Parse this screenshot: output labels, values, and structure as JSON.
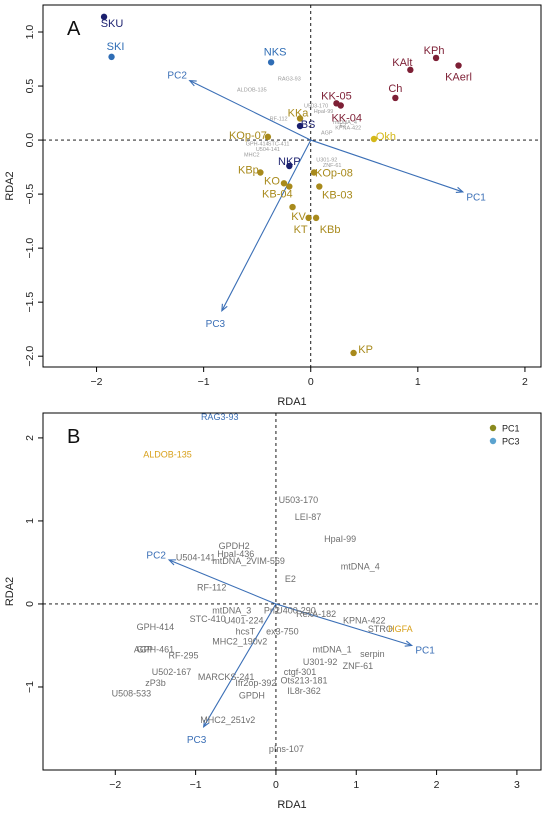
{
  "colors": {
    "frame": "#000000",
    "arrow": "#3b6fb6",
    "arrow_label": "#3b6fb6",
    "variable_label": "#6e6e6e",
    "faint_label": "#9a9a9a",
    "navy": "#1a1f6e",
    "blue": "#2f6db5",
    "maroon": "#7d1f35",
    "olive": "#a88a1c",
    "gold": "#d4b819",
    "pc1_legend": "#8a8a1f",
    "pc3_legend": "#5ba3cf",
    "orange_label": "#d8a01a"
  },
  "chart_data": [
    {
      "panel_label": "A",
      "type": "scatter",
      "xlabel": "RDA1",
      "ylabel": "RDA2",
      "xlim": [
        -2.5,
        2.15
      ],
      "ylim": [
        -2.1,
        1.25
      ],
      "xticks": [
        -2,
        -1,
        0,
        1,
        2
      ],
      "yticks": [
        -2.0,
        -1.5,
        -1.0,
        -0.5,
        0.0,
        0.5,
        1.0
      ],
      "xtick_labels": [
        "−2",
        "−1",
        "0",
        "1",
        "2"
      ],
      "ytick_labels": [
        "−2.0",
        "−1.5",
        "−1.0",
        "−0.5",
        "0.0",
        "0.5",
        "1.0"
      ],
      "points": [
        {
          "label": "SKU",
          "x": -1.93,
          "y": 1.14,
          "color": "navy"
        },
        {
          "label": "SKI",
          "x": -1.86,
          "y": 0.77,
          "color": "blue"
        },
        {
          "label": "NKS",
          "x": -0.37,
          "y": 0.72,
          "color": "blue"
        },
        {
          "label": "KPh",
          "x": 1.17,
          "y": 0.76,
          "color": "maroon"
        },
        {
          "label": "KAerl",
          "x": 1.38,
          "y": 0.69,
          "color": "maroon"
        },
        {
          "label": "KAlt",
          "x": 0.93,
          "y": 0.65,
          "color": "maroon"
        },
        {
          "label": "Ch",
          "x": 0.79,
          "y": 0.39,
          "color": "maroon"
        },
        {
          "label": "KK-05",
          "x": 0.24,
          "y": 0.34,
          "color": "maroon"
        },
        {
          "label": "KK-04",
          "x": 0.28,
          "y": 0.32,
          "color": "maroon"
        },
        {
          "label": "KKa",
          "x": -0.1,
          "y": 0.2,
          "color": "olive"
        },
        {
          "label": "BS",
          "x": -0.1,
          "y": 0.13,
          "color": "navy"
        },
        {
          "label": "KOp-07",
          "x": -0.4,
          "y": 0.03,
          "color": "olive"
        },
        {
          "label": "Okh",
          "x": 0.59,
          "y": 0.01,
          "color": "gold"
        },
        {
          "label": "NKP",
          "x": -0.2,
          "y": -0.24,
          "color": "navy"
        },
        {
          "label": "KBp",
          "x": -0.47,
          "y": -0.3,
          "color": "olive"
        },
        {
          "label": "KOp-08",
          "x": 0.03,
          "y": -0.3,
          "color": "olive"
        },
        {
          "label": "KO",
          "x": -0.25,
          "y": -0.4,
          "color": "olive"
        },
        {
          "label": "KB-04",
          "x": -0.2,
          "y": -0.43,
          "color": "olive"
        },
        {
          "label": "KB-03",
          "x": 0.08,
          "y": -0.43,
          "color": "olive"
        },
        {
          "label": "KV",
          "x": -0.17,
          "y": -0.62,
          "color": "olive"
        },
        {
          "label": "KT",
          "x": -0.02,
          "y": -0.72,
          "color": "olive"
        },
        {
          "label": "KBb",
          "x": 0.05,
          "y": -0.72,
          "color": "olive"
        },
        {
          "label": "KP",
          "x": 0.4,
          "y": -1.97,
          "color": "olive"
        }
      ],
      "arrows": [
        {
          "label": "PC2",
          "x": -1.13,
          "y": 0.55
        },
        {
          "label": "PC1",
          "x": 1.42,
          "y": -0.48
        },
        {
          "label": "PC3",
          "x": -0.83,
          "y": -1.58
        }
      ],
      "small_labels": [
        "RAG3-93",
        "ALDOB-135",
        "RF-112",
        "U504-141",
        "STC-411",
        "GPH-414",
        "AGP",
        "E2",
        "mtDNA_4",
        "HpaI-99",
        "U503-170",
        "U301-92",
        "MHC2",
        "ZNF-61",
        "KPNA-422"
      ]
    },
    {
      "panel_label": "B",
      "type": "scatter",
      "xlabel": "RDA1",
      "ylabel": "RDA2",
      "xlim": [
        -2.9,
        3.3
      ],
      "ylim": [
        -2.0,
        2.3
      ],
      "xticks": [
        -2,
        -1,
        0,
        1,
        2,
        3
      ],
      "yticks": [
        -1,
        0,
        1,
        2
      ],
      "xtick_labels": [
        "−2",
        "−1",
        "0",
        "1",
        "2",
        "3"
      ],
      "ytick_labels": [
        "−1",
        "0",
        "1",
        "2"
      ],
      "legend": {
        "position": "top-right",
        "entries": [
          {
            "label": "PC1",
            "color": "pc1_legend"
          },
          {
            "label": "PC3",
            "color": "pc3_legend"
          }
        ]
      },
      "arrows": [
        {
          "label": "PC2",
          "x": -1.33,
          "y": 0.53
        },
        {
          "label": "PC1",
          "x": 1.69,
          "y": -0.5
        },
        {
          "label": "PC3",
          "x": -0.9,
          "y": -1.48
        }
      ],
      "variables": [
        {
          "label": "RAG3-93",
          "x": -0.7,
          "y": 2.25,
          "color": "arrow_label"
        },
        {
          "label": "ALDOB-135",
          "x": -1.35,
          "y": 1.8,
          "color": "orange_label"
        },
        {
          "label": "U503-170",
          "x": 0.28,
          "y": 1.25,
          "color": "variable_label"
        },
        {
          "label": "LEI-87",
          "x": 0.4,
          "y": 1.05,
          "color": "variable_label"
        },
        {
          "label": "HpaI-99",
          "x": 0.8,
          "y": 0.78,
          "color": "variable_label"
        },
        {
          "label": "mtDNA_4",
          "x": 1.05,
          "y": 0.45,
          "color": "variable_label"
        },
        {
          "label": "GPDH2",
          "x": -0.52,
          "y": 0.7,
          "color": "variable_label"
        },
        {
          "label": "HpaI-436",
          "x": -0.5,
          "y": 0.6,
          "color": "variable_label"
        },
        {
          "label": "U504-141",
          "x": -1.0,
          "y": 0.56,
          "color": "variable_label"
        },
        {
          "label": "mtDNA_2",
          "x": -0.55,
          "y": 0.52,
          "color": "variable_label"
        },
        {
          "label": "VIM-569",
          "x": -0.1,
          "y": 0.52,
          "color": "variable_label"
        },
        {
          "label": "E2",
          "x": 0.18,
          "y": 0.3,
          "color": "variable_label"
        },
        {
          "label": "RF-112",
          "x": -0.8,
          "y": 0.2,
          "color": "variable_label"
        },
        {
          "label": "mtDNA_3",
          "x": -0.55,
          "y": -0.08,
          "color": "variable_label"
        },
        {
          "label": "Pri2",
          "x": -0.05,
          "y": -0.08,
          "color": "variable_label"
        },
        {
          "label": "U400-290",
          "x": 0.25,
          "y": -0.08,
          "color": "variable_label"
        },
        {
          "label": "RexA-182",
          "x": 0.5,
          "y": -0.12,
          "color": "variable_label"
        },
        {
          "label": "KPNA-422",
          "x": 1.1,
          "y": -0.2,
          "color": "variable_label"
        },
        {
          "label": "STC-410",
          "x": -0.85,
          "y": -0.18,
          "color": "variable_label"
        },
        {
          "label": "U401-224",
          "x": -0.4,
          "y": -0.2,
          "color": "variable_label"
        },
        {
          "label": "hcsT",
          "x": -0.38,
          "y": -0.33,
          "color": "variable_label"
        },
        {
          "label": "ex3-750",
          "x": 0.08,
          "y": -0.33,
          "color": "variable_label"
        },
        {
          "label": "STRO",
          "x": 1.3,
          "y": -0.3,
          "color": "variable_label"
        },
        {
          "label": "HGFA",
          "x": 1.55,
          "y": -0.3,
          "color": "orange_label"
        },
        {
          "label": "GPH-414",
          "x": -1.5,
          "y": -0.28,
          "color": "variable_label"
        },
        {
          "label": "MHC2_190v2",
          "x": -0.45,
          "y": -0.45,
          "color": "variable_label"
        },
        {
          "label": "mtDNA_1",
          "x": 0.7,
          "y": -0.55,
          "color": "variable_label"
        },
        {
          "label": "serpin",
          "x": 1.2,
          "y": -0.6,
          "color": "variable_label"
        },
        {
          "label": "AGP",
          "x": -1.65,
          "y": -0.55,
          "color": "variable_label"
        },
        {
          "label": "GPH-461",
          "x": -1.5,
          "y": -0.55,
          "color": "variable_label"
        },
        {
          "label": "RF-295",
          "x": -1.15,
          "y": -0.62,
          "color": "variable_label"
        },
        {
          "label": "U301-92",
          "x": 0.55,
          "y": -0.7,
          "color": "variable_label"
        },
        {
          "label": "ZNF-61",
          "x": 1.02,
          "y": -0.75,
          "color": "variable_label"
        },
        {
          "label": "ctgf-301",
          "x": 0.3,
          "y": -0.82,
          "color": "variable_label"
        },
        {
          "label": "U502-167",
          "x": -1.3,
          "y": -0.82,
          "color": "variable_label"
        },
        {
          "label": "MARCKS-241",
          "x": -0.62,
          "y": -0.88,
          "color": "variable_label"
        },
        {
          "label": "Ots213-181",
          "x": 0.35,
          "y": -0.92,
          "color": "variable_label"
        },
        {
          "label": "zP3b",
          "x": -1.5,
          "y": -0.95,
          "color": "variable_label"
        },
        {
          "label": "Ifr2op-392",
          "x": -0.25,
          "y": -0.95,
          "color": "variable_label"
        },
        {
          "label": "IL8r-362",
          "x": 0.35,
          "y": -1.05,
          "color": "variable_label"
        },
        {
          "label": "U508-533",
          "x": -1.8,
          "y": -1.08,
          "color": "variable_label"
        },
        {
          "label": "GPDH",
          "x": -0.3,
          "y": -1.1,
          "color": "variable_label"
        },
        {
          "label": "MHC2_251v2",
          "x": -0.6,
          "y": -1.4,
          "color": "variable_label"
        },
        {
          "label": "pIns-107",
          "x": 0.13,
          "y": -1.75,
          "color": "variable_label"
        }
      ]
    }
  ]
}
